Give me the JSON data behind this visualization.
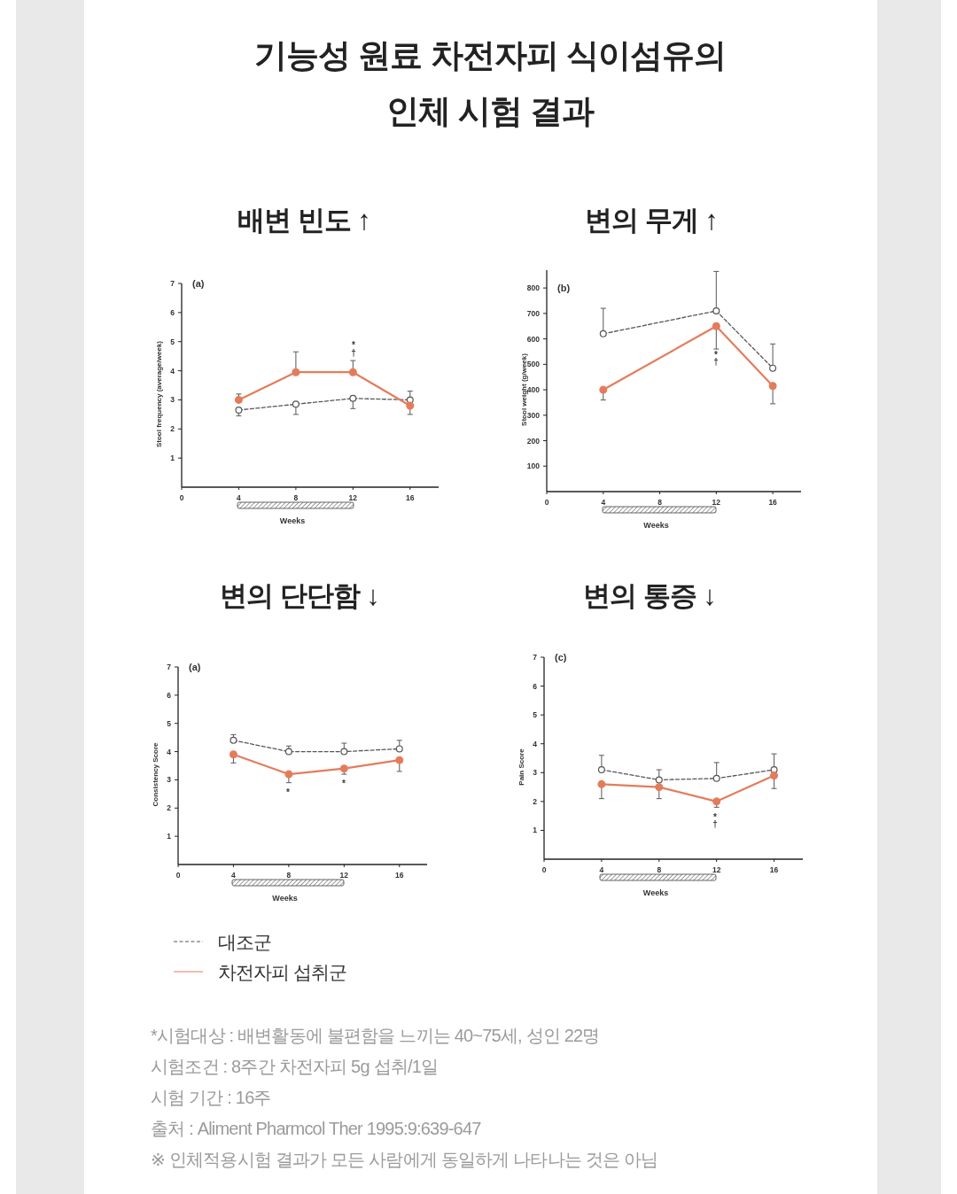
{
  "chart_data": [
    {
      "type": "other",
      "title": "기능성 원료 차전자피 식이섬유의 인체 시험 결과"
    },
    {
      "type": "line",
      "title": "배변 빈도 ↑",
      "xlabel": "Weeks",
      "ylabel": "Stool frequency (average/week)",
      "x": [
        4,
        8,
        12,
        16
      ],
      "xlim": [
        0,
        18
      ],
      "xticks": [
        0,
        4,
        8,
        12,
        16
      ],
      "ylim": [
        0,
        7
      ],
      "yticks": [
        1,
        2,
        3,
        4,
        5,
        6,
        7
      ],
      "marker": "circle",
      "series": [
        {
          "color": "#555555",
          "line_style": "dashed",
          "values": [
            2.65,
            2.85,
            3.05,
            3.0
          ],
          "errors": [
            [
              2.45,
              2.65
            ],
            [
              2.5,
              2.85
            ],
            [
              2.7,
              3.05
            ],
            [
              3.0,
              3.3
            ]
          ]
        },
        {
          "color": "#e47c5c",
          "line_style": "solid",
          "values": [
            3.0,
            3.95,
            3.95,
            2.8
          ],
          "errors": [
            [
              3.0,
              3.2
            ],
            [
              3.95,
              4.65
            ],
            [
              3.95,
              4.35
            ],
            [
              2.5,
              2.8
            ]
          ]
        }
      ],
      "annotations": [
        "(a)",
        "*",
        "†"
      ]
    },
    {
      "type": "line",
      "title": "변의 무게 ↑",
      "xlabel": "Weeks",
      "ylabel": "Stool weight (g/week)",
      "x": [
        4,
        12,
        16
      ],
      "xlim": [
        0,
        18
      ],
      "xticks": [
        0,
        4,
        8,
        12,
        16
      ],
      "ylim": [
        0,
        870
      ],
      "yticks": [
        100,
        200,
        300,
        400,
        500,
        600,
        700,
        800
      ],
      "marker": "circle",
      "series": [
        {
          "color": "#555555",
          "line_style": "dashed",
          "values": [
            620,
            710,
            485
          ],
          "errors": [
            [
              620,
              720
            ],
            [
              710,
              865
            ],
            [
              485,
              580
            ]
          ]
        },
        {
          "color": "#e47c5c",
          "line_style": "solid",
          "values": [
            400,
            650,
            415
          ],
          "errors": [
            [
              360,
              400
            ],
            [
              560,
              650
            ],
            [
              345,
              415
            ]
          ]
        }
      ],
      "annotations": [
        "(b)",
        "*",
        "†"
      ]
    },
    {
      "type": "line",
      "title": "변의 단단함 ↓",
      "xlabel": "Weeks",
      "ylabel": "Consistency Score",
      "x": [
        4,
        8,
        12,
        16
      ],
      "xlim": [
        0,
        18
      ],
      "xticks": [
        0,
        4,
        8,
        12,
        16
      ],
      "ylim": [
        0,
        7
      ],
      "yticks": [
        1,
        2,
        3,
        4,
        5,
        6,
        7
      ],
      "marker": "circle",
      "legend": "bottom",
      "series": [
        {
          "name": "대조군",
          "color": "#555555",
          "line_style": "dashed",
          "values": [
            4.4,
            4.0,
            4.0,
            4.1
          ],
          "errors": [
            [
              4.4,
              4.6
            ],
            [
              4.0,
              4.2
            ],
            [
              4.0,
              4.3
            ],
            [
              4.1,
              4.4
            ]
          ]
        },
        {
          "name": "차전자피 섭취군",
          "color": "#e47c5c",
          "line_style": "solid",
          "values": [
            3.9,
            3.2,
            3.4,
            3.7
          ],
          "errors": [
            [
              3.6,
              3.9
            ],
            [
              2.9,
              3.2
            ],
            [
              3.2,
              3.4
            ],
            [
              3.3,
              3.7
            ]
          ]
        }
      ],
      "annotations": [
        "(a)",
        "*",
        "*"
      ]
    },
    {
      "type": "line",
      "title": "변의 통증 ↓",
      "xlabel": "Weeks",
      "ylabel": "Pain Score",
      "x": [
        4,
        8,
        12,
        16
      ],
      "xlim": [
        0,
        18
      ],
      "xticks": [
        0,
        4,
        8,
        12,
        16
      ],
      "ylim": [
        0,
        7
      ],
      "yticks": [
        1,
        2,
        3,
        4,
        5,
        6,
        7
      ],
      "marker": "circle",
      "series": [
        {
          "color": "#555555",
          "line_style": "dashed",
          "values": [
            3.1,
            2.75,
            2.8,
            3.1
          ],
          "errors": [
            [
              3.1,
              3.6
            ],
            [
              2.75,
              3.1
            ],
            [
              2.8,
              3.35
            ],
            [
              3.1,
              3.65
            ]
          ]
        },
        {
          "color": "#e47c5c",
          "line_style": "solid",
          "values": [
            2.6,
            2.5,
            2.0,
            2.9
          ],
          "errors": [
            [
              2.1,
              2.6
            ],
            [
              2.1,
              2.5
            ],
            [
              1.8,
              2.0
            ],
            [
              2.45,
              2.9
            ]
          ]
        }
      ],
      "annotations": [
        "(c)",
        "*",
        "†"
      ]
    },
    {
      "type": "other",
      "annotations": [
        "*시험대상 : 배변활동에 불편함을 느끼는 40~75세, 성인 22명",
        "시험조건 : 8주간 차전자피 5g 섭취/1일",
        "시험 기간 : 16주",
        "출처 : Aliment Pharmcol Ther 1995:9:639-647",
        "※ 인체적용시험 결과가 모든 사람에게 동일하게 나타나는 것은 아님"
      ]
    }
  ]
}
